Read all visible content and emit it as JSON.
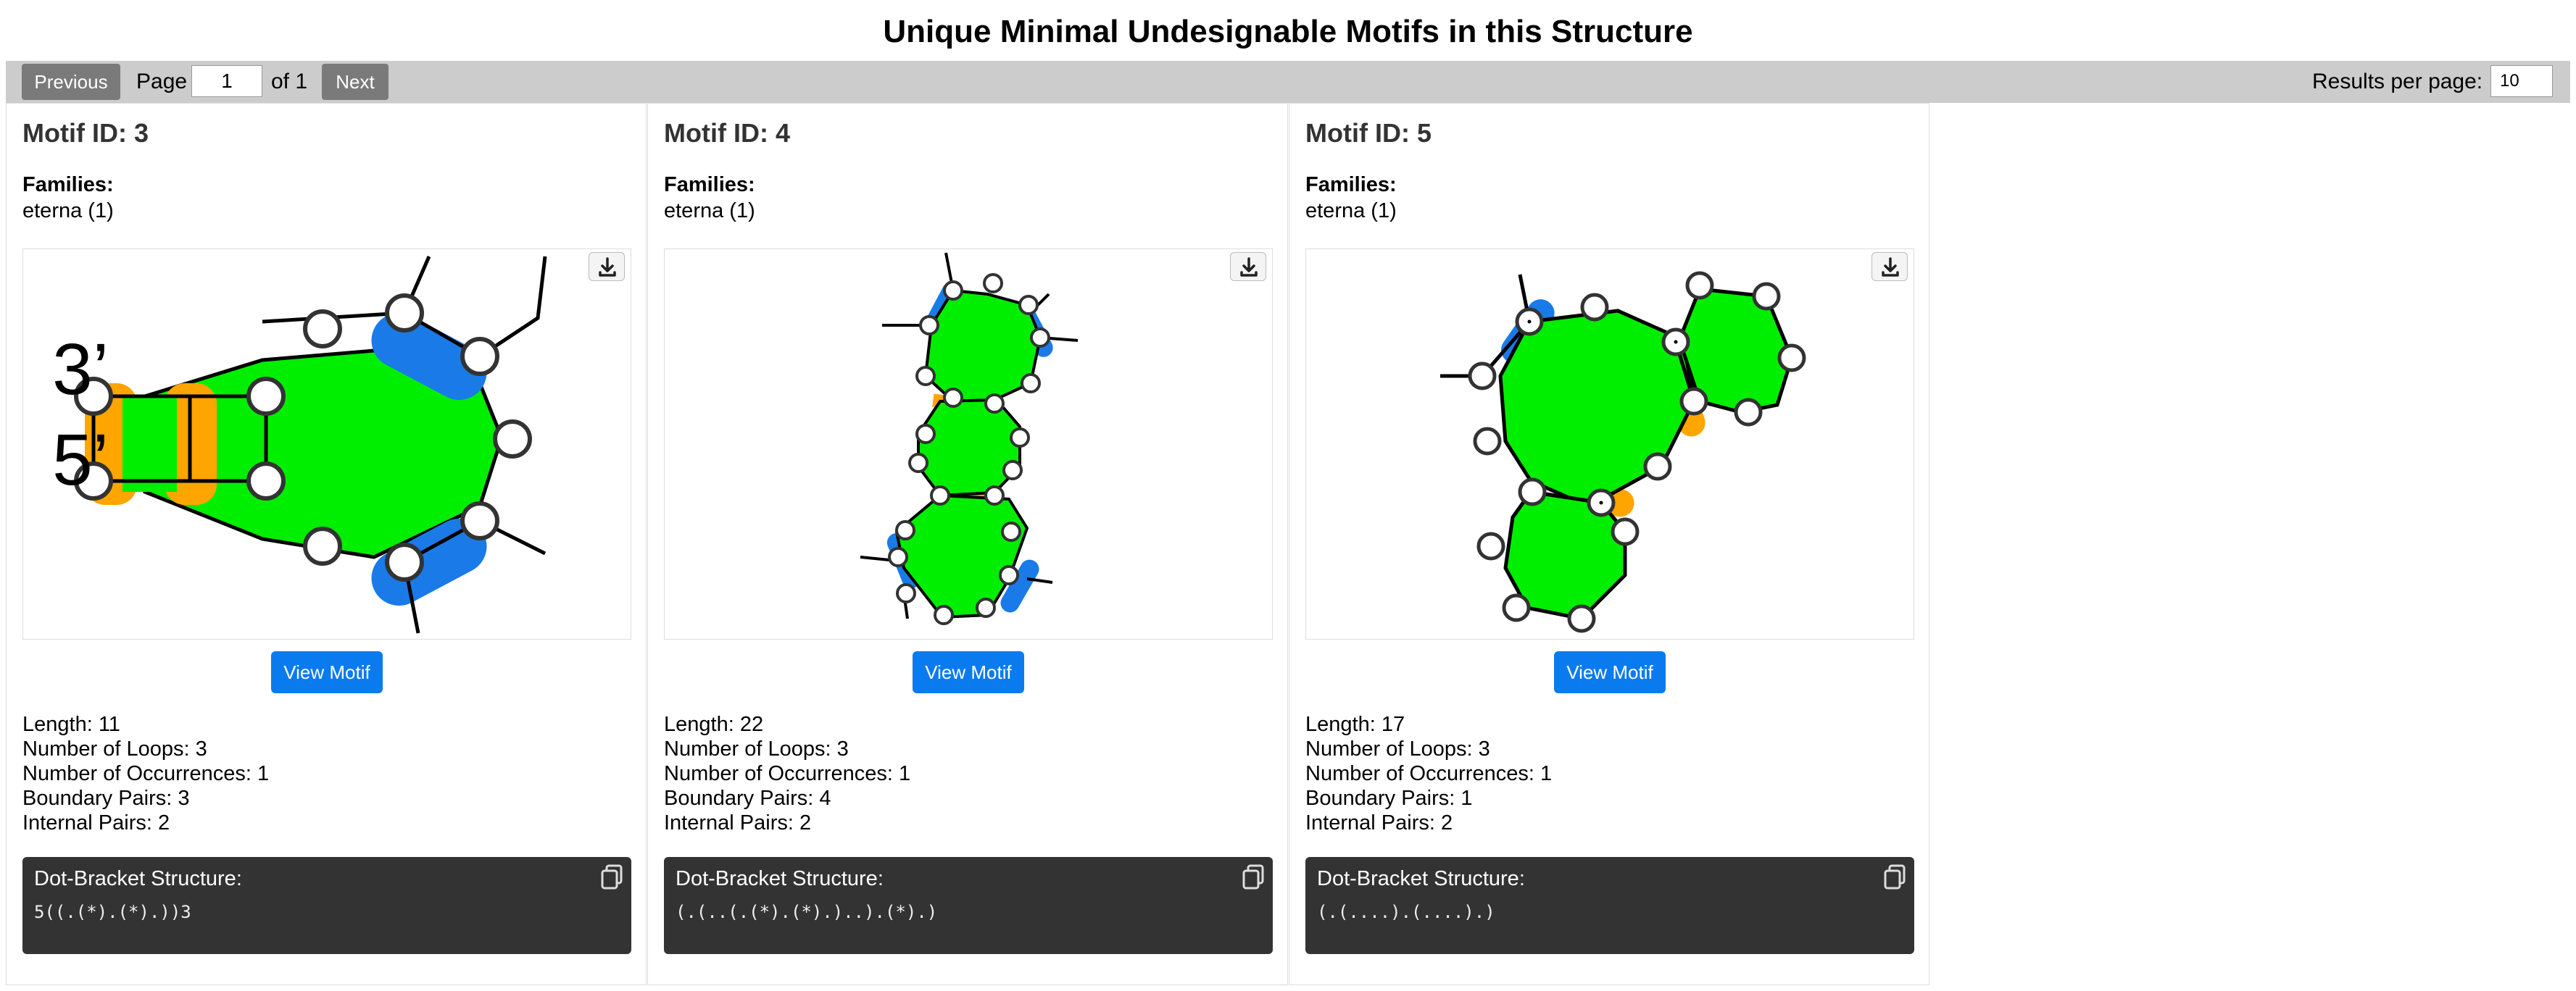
{
  "page": {
    "title": "Unique Minimal Undesignable Motifs in this Structure"
  },
  "pagination": {
    "previous_label": "Previous",
    "page_label": "Page",
    "current_page": "1",
    "of_label": "of 1",
    "next_label": "Next",
    "results_per_page_label": "Results per page:",
    "results_per_page": "10"
  },
  "motifs": [
    {
      "title": "Motif ID: 3",
      "families_label": "Families:",
      "families": "eterna (1)",
      "image_labels": {
        "end3": "3’",
        "end5": "5’"
      },
      "download_icon": "download-icon",
      "view_label": "View Motif",
      "length": "Length: 11",
      "loops": "Number of Loops: 3",
      "occurrences": "Number of Occurrences: 1",
      "boundary_pairs": "Boundary Pairs: 3",
      "internal_pairs": "Internal Pairs: 2",
      "dot_bracket_label": "Dot-Bracket Structure:",
      "dot_bracket": "5((.(*).(*).))3",
      "copy_icon": "copy-icon"
    },
    {
      "title": "Motif ID: 4",
      "families_label": "Families:",
      "families": "eterna (1)",
      "download_icon": "download-icon",
      "view_label": "View Motif",
      "length": "Length: 22",
      "loops": "Number of Loops: 3",
      "occurrences": "Number of Occurrences: 1",
      "boundary_pairs": "Boundary Pairs: 4",
      "internal_pairs": "Internal Pairs: 2",
      "dot_bracket_label": "Dot-Bracket Structure:",
      "dot_bracket": "(.(..(.(*).(*).)..).(*).)",
      "copy_icon": "copy-icon"
    },
    {
      "title": "Motif ID: 5",
      "families_label": "Families:",
      "families": "eterna (1)",
      "download_icon": "download-icon",
      "view_label": "View Motif",
      "length": "Length: 17",
      "loops": "Number of Loops: 3",
      "occurrences": "Number of Occurrences: 1",
      "boundary_pairs": "Boundary Pairs: 1",
      "internal_pairs": "Internal Pairs: 2",
      "dot_bracket_label": "Dot-Bracket Structure:",
      "dot_bracket": "(.(....).(....).)",
      "copy_icon": "copy-icon"
    }
  ],
  "colors": {
    "loop": "#00ee00",
    "internal_pair": "#ffa500",
    "boundary_pair": "#1a7be8",
    "button": "#0a7bef",
    "code_bg": "#333333"
  }
}
